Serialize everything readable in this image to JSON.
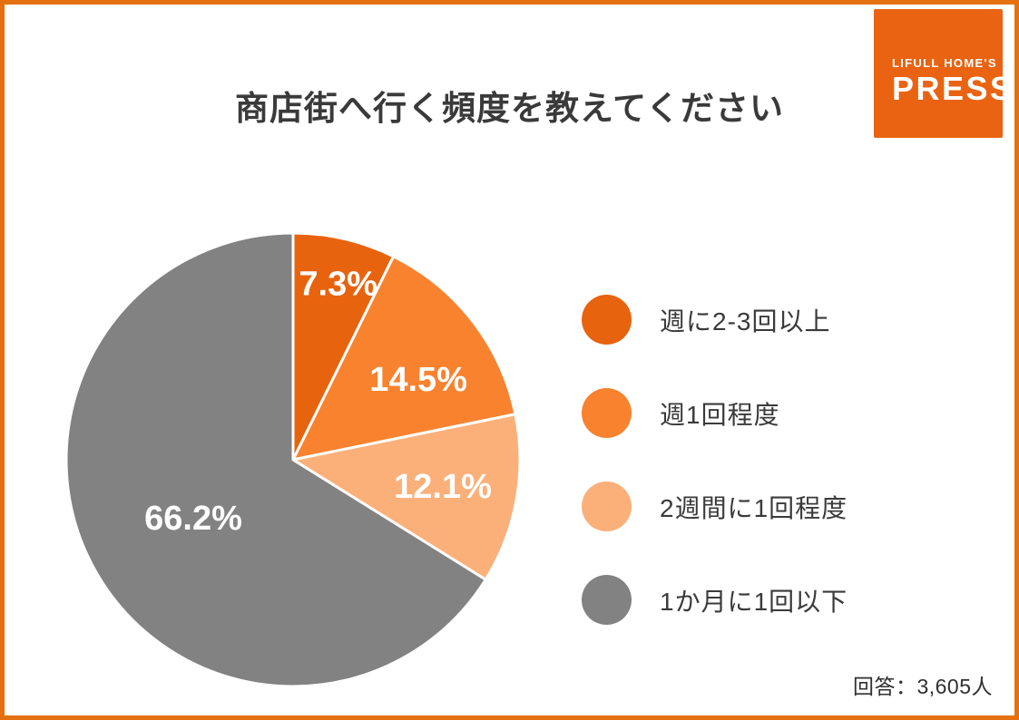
{
  "page": {
    "border_color": "#E4710E",
    "background": "#FFFFFF"
  },
  "header": {
    "title_before": "商店街へ行く",
    "title_highlight": "頻度",
    "title_after": "を教えてください",
    "highlight_color": "#FAF45C",
    "title_color": "#3A3A3A"
  },
  "logo": {
    "line1": "LIFULL HOME'S",
    "line2": "PRESS",
    "background": "#E96312",
    "text_color": "#FFFFFF"
  },
  "chart_data": {
    "type": "pie",
    "title": "商店街へ行く頻度を教えてください",
    "categories": [
      "週に2-3回以上",
      "週1回程度",
      "2週間に1回程度",
      "1か月に1回以下"
    ],
    "values": [
      7.3,
      14.5,
      12.1,
      66.2
    ],
    "unit": "%",
    "labels": [
      "7.3%",
      "14.5%",
      "12.1%",
      "66.2%"
    ],
    "colors": [
      "#E8630E",
      "#F9822F",
      "#FBB07A",
      "#828282"
    ],
    "start_angle": "12-oclock",
    "direction": "clockwise",
    "label_color": "#FFFFFF",
    "slice_border_color": "#FFFFFF",
    "legend_position": "right"
  },
  "footer": {
    "respondents": "回答：3,605人"
  }
}
